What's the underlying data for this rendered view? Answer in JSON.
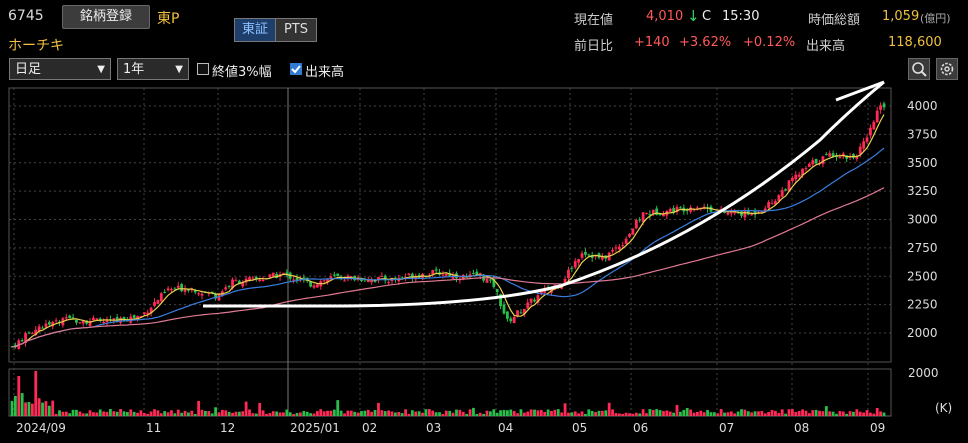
{
  "header": {
    "code": "6745",
    "register_label": "銘柄登録",
    "market": "東P",
    "name": "ホーチキ",
    "exchange_tabs": [
      "東証",
      "PTS"
    ],
    "price_label": "現在値",
    "price": "4,010",
    "price_arrow": "↓",
    "price_flag": "C",
    "time": "15:30",
    "mcap_label": "時価総額",
    "mcap": "1,059",
    "mcap_unit": "(億円)",
    "change_label": "前日比",
    "change": "+140",
    "change_pct": "+3.62%",
    "change_pct2": "+0.12%",
    "volume_label": "出来高",
    "volume": "118,600"
  },
  "controls": {
    "period": "日足",
    "range": "1年",
    "band_label": "終値3%幅",
    "band_checked": false,
    "volume_label": "出来高",
    "volume_checked": true
  },
  "colors": {
    "up": "#ff2a55",
    "down": "#27c04a",
    "ma_short": "#e6d34d",
    "ma_mid": "#3a7de0",
    "ma_long": "#e07a92",
    "trend": "#ffffff"
  },
  "chart_data": {
    "type": "candlestick",
    "y_ticks": [
      "4000",
      "3750",
      "3500",
      "3250",
      "3000",
      "2750",
      "2500",
      "2250",
      "2000"
    ],
    "ylim": [
      1850,
      4100
    ],
    "x_labels": [
      "2024/09",
      "11",
      "12",
      "2025/01",
      "02",
      "03",
      "04",
      "05",
      "06",
      "07",
      "08",
      "09"
    ],
    "close_path": [
      [
        0,
        1880
      ],
      [
        8,
        2060
      ],
      [
        18,
        2120
      ],
      [
        28,
        2100
      ],
      [
        38,
        2150
      ],
      [
        46,
        2380
      ],
      [
        52,
        2400
      ],
      [
        60,
        2330
      ],
      [
        65,
        2450
      ],
      [
        72,
        2470
      ],
      [
        80,
        2520
      ],
      [
        88,
        2430
      ],
      [
        95,
        2490
      ],
      [
        104,
        2480
      ],
      [
        112,
        2470
      ],
      [
        118,
        2510
      ],
      [
        126,
        2530
      ],
      [
        134,
        2490
      ],
      [
        138,
        2510
      ],
      [
        142,
        2420
      ],
      [
        146,
        2100
      ],
      [
        150,
        2200
      ],
      [
        156,
        2350
      ],
      [
        162,
        2450
      ],
      [
        168,
        2720
      ],
      [
        174,
        2650
      ],
      [
        180,
        2800
      ],
      [
        186,
        3050
      ],
      [
        194,
        3080
      ],
      [
        202,
        3120
      ],
      [
        210,
        3060
      ],
      [
        218,
        3050
      ],
      [
        224,
        3150
      ],
      [
        230,
        3350
      ],
      [
        236,
        3500
      ],
      [
        242,
        3580
      ],
      [
        248,
        3550
      ],
      [
        252,
        3700
      ],
      [
        255,
        3950
      ],
      [
        257,
        4010
      ]
    ],
    "volume_axis_top": "2000",
    "volume_axis_unit": "(K)"
  }
}
